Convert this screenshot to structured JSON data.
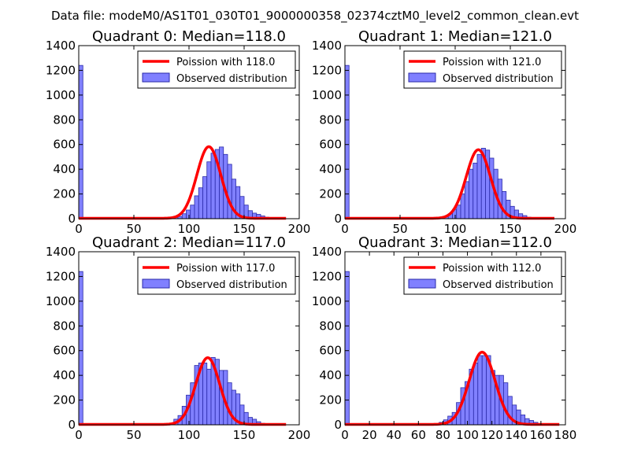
{
  "figure": {
    "suptitle": "Data file: modeM0/AS1T01_030T01_9000000358_02374cztM0_level2_common_clean.evt"
  },
  "chart_data": [
    {
      "type": "bar",
      "title": "Quadrant 0: Median=118.0",
      "xlim": [
        0,
        200
      ],
      "ylim": [
        0,
        1400
      ],
      "xticks": [
        0,
        50,
        100,
        150,
        200
      ],
      "yticks": [
        0,
        200,
        400,
        600,
        800,
        1000,
        1200,
        1400
      ],
      "bin_width": 3.75,
      "legend": [
        "Poission with 118.0",
        "Observed distribution"
      ],
      "legend_position": "top-right",
      "zero_bin": 1240,
      "hist_start": 78.75,
      "hist_values": [
        3,
        8,
        12,
        18,
        40,
        70,
        110,
        185,
        250,
        340,
        460,
        530,
        560,
        580,
        520,
        440,
        320,
        260,
        180,
        110,
        65,
        45,
        35,
        22,
        12,
        8,
        4,
        2
      ],
      "poisson_mean": 118.0,
      "poisson_peak": 580,
      "x_end": 188
    },
    {
      "type": "bar",
      "title": "Quadrant 1: Median=121.0",
      "xlim": [
        0,
        200
      ],
      "ylim": [
        0,
        1400
      ],
      "xticks": [
        0,
        50,
        100,
        150,
        200
      ],
      "yticks": [
        0,
        200,
        400,
        600,
        800,
        1000,
        1200,
        1400
      ],
      "bin_width": 3.75,
      "legend": [
        "Poission with 121.0",
        "Observed distribution"
      ],
      "legend_position": "top-right",
      "zero_bin": 1240,
      "hist_start": 78.75,
      "hist_values": [
        3,
        8,
        12,
        20,
        40,
        75,
        110,
        200,
        300,
        400,
        450,
        520,
        570,
        555,
        490,
        400,
        320,
        220,
        150,
        100,
        70,
        40,
        25,
        12,
        8,
        5,
        3,
        2
      ],
      "poisson_mean": 121.0,
      "poisson_peak": 555,
      "x_end": 190
    },
    {
      "type": "bar",
      "title": "Quadrant 2: Median=117.0",
      "xlim": [
        0,
        200
      ],
      "ylim": [
        0,
        1400
      ],
      "xticks": [
        0,
        50,
        100,
        150,
        200
      ],
      "yticks": [
        0,
        200,
        400,
        600,
        800,
        1000,
        1200,
        1400
      ],
      "bin_width": 3.75,
      "legend": [
        "Poission with 117.0",
        "Observed distribution"
      ],
      "legend_position": "top-right",
      "zero_bin": 1240,
      "hist_start": 78.75,
      "hist_values": [
        5,
        10,
        45,
        75,
        150,
        240,
        340,
        480,
        500,
        500,
        450,
        545,
        530,
        440,
        440,
        340,
        280,
        250,
        160,
        100,
        60,
        45,
        25,
        12,
        8,
        4,
        2,
        2
      ],
      "poisson_mean": 117.0,
      "poisson_peak": 540,
      "x_end": 188
    },
    {
      "type": "bar",
      "title": "Quadrant 3: Median=112.0",
      "xlim": [
        0,
        180
      ],
      "ylim": [
        0,
        1400
      ],
      "xticks": [
        0,
        20,
        40,
        60,
        80,
        100,
        120,
        140,
        160,
        180
      ],
      "yticks": [
        0,
        200,
        400,
        600,
        800,
        1000,
        1200,
        1400
      ],
      "bin_width": 3.5,
      "legend": [
        "Poission with 112.0",
        "Observed distribution"
      ],
      "legend_position": "top-right",
      "zero_bin": 1240,
      "hist_start": 77,
      "hist_values": [
        20,
        40,
        70,
        100,
        180,
        300,
        350,
        450,
        500,
        560,
        560,
        560,
        440,
        400,
        400,
        340,
        230,
        160,
        120,
        80,
        50,
        35,
        20,
        10,
        5,
        3,
        2,
        1
      ],
      "poisson_mean": 112.0,
      "poisson_peak": 585,
      "x_end": 175
    }
  ],
  "colors": {
    "bar_fill": "#8080ff",
    "bar_edge": "#2a2aa8",
    "poisson_line": "#ff0000",
    "axis": "#000000"
  }
}
